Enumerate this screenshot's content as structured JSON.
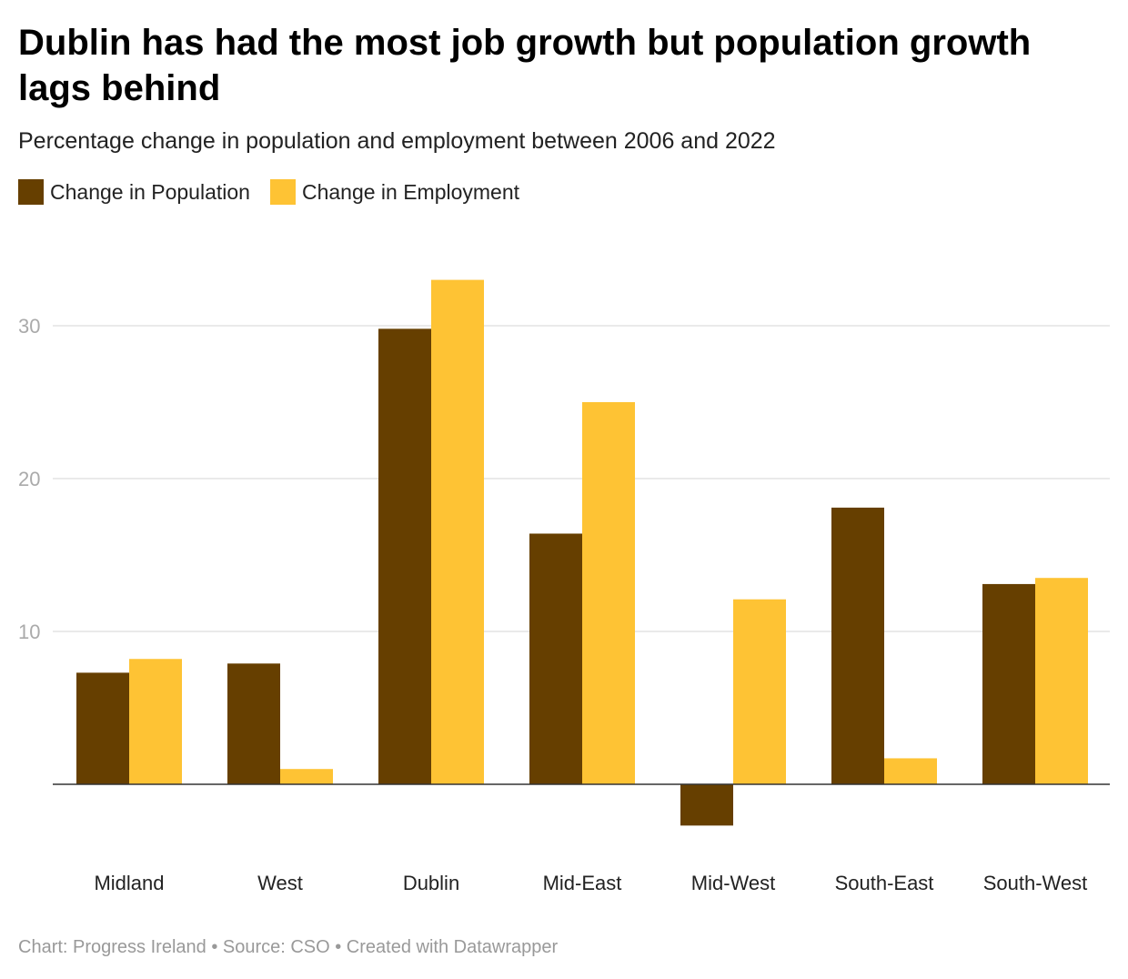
{
  "chart_data": {
    "type": "bar",
    "title": "Dublin has had the most job growth but population growth lags behind",
    "subtitle": "Percentage change in population and employment between 2006 and 2022",
    "categories": [
      "Midland",
      "West",
      "Dublin",
      "Mid-East",
      "Mid-West",
      "South-East",
      "South-West"
    ],
    "series": [
      {
        "name": "Change in Population",
        "color": "#663f00",
        "values": [
          7.3,
          7.9,
          29.8,
          16.4,
          -2.7,
          18.1,
          13.1
        ]
      },
      {
        "name": "Change in Employment",
        "color": "#fec334",
        "values": [
          8.2,
          1.0,
          33.0,
          25.0,
          12.1,
          1.7,
          13.5
        ]
      }
    ],
    "yticks": [
      10,
      20,
      30
    ],
    "ylim": [
      -3,
      33
    ],
    "grid": true,
    "legend_position": "top-left",
    "xlabel": "",
    "ylabel": ""
  },
  "footer": "Chart: Progress Ireland • Source: CSO • Created with Datawrapper"
}
